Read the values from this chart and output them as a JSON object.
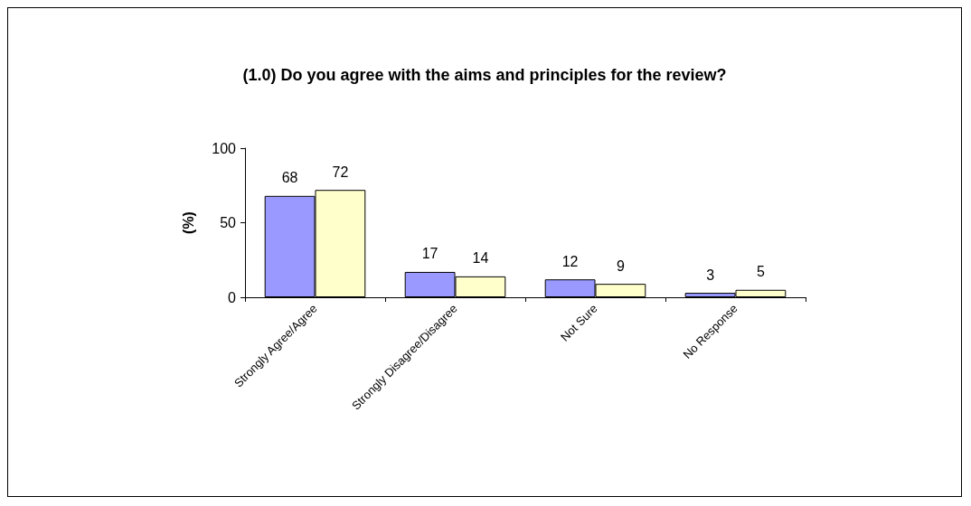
{
  "chart_data": {
    "type": "bar",
    "title": "(1.0) Do you agree with the aims and principles for the review?",
    "ylabel": "(%)",
    "categories": [
      "Strongly Agree/Agree",
      "Strongly Disagree/Disagree",
      "Not Sure",
      "No Response"
    ],
    "series": [
      {
        "color": "#9999ff",
        "values": [
          68,
          17,
          12,
          3
        ]
      },
      {
        "color": "#ffffcc",
        "values": [
          72,
          14,
          9,
          5
        ]
      }
    ],
    "ylim": [
      0,
      100
    ],
    "yticks": [
      0,
      50,
      100
    ],
    "grid": false,
    "data_labels": true
  }
}
